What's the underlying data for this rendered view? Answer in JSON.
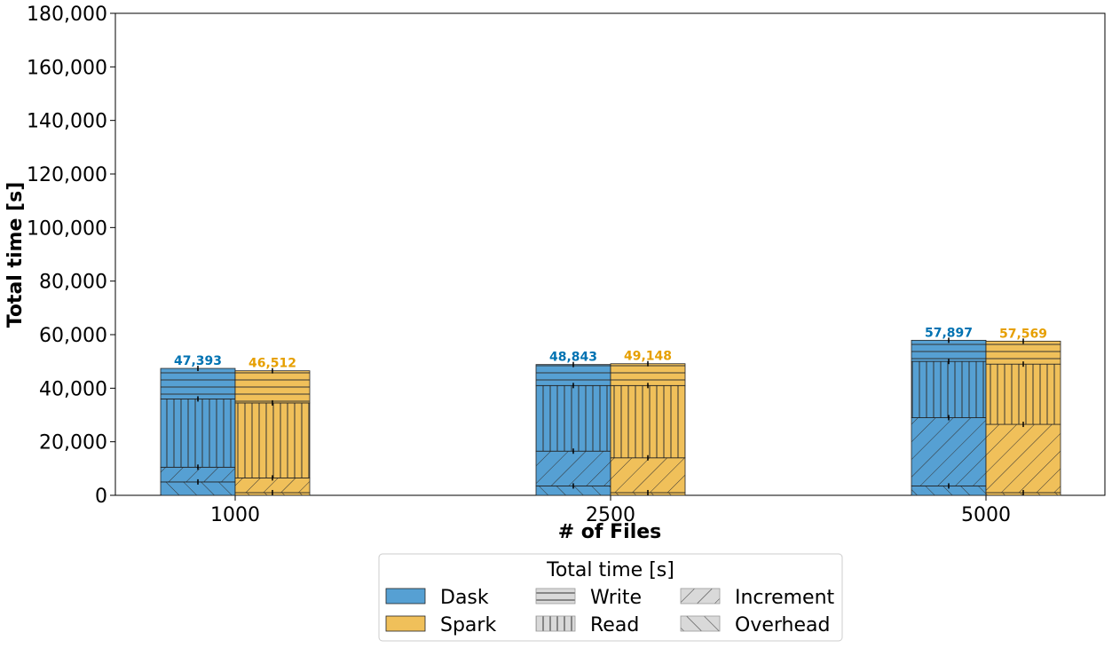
{
  "chart_data": {
    "type": "bar",
    "stacked": true,
    "xlabel": "# of Files",
    "ylabel": "Total time [s]",
    "ylim": [
      0,
      180000
    ],
    "yticks": [
      "0",
      "20,000",
      "40,000",
      "60,000",
      "80,000",
      "100,000",
      "120,000",
      "140,000",
      "160,000",
      "180,000"
    ],
    "categories": [
      "1000",
      "2500",
      "5000"
    ],
    "components": [
      "Overhead",
      "Increment",
      "Read",
      "Write"
    ],
    "series": [
      {
        "name": "Dask",
        "color": "#56a0d3",
        "label_color": "#0072b2",
        "totals": [
          47393,
          48843,
          57897
        ],
        "total_labels": [
          "47,393",
          "48,843",
          "57,897"
        ],
        "segments": {
          "Overhead": [
            5000,
            3500,
            3500
          ],
          "Increment": [
            5500,
            13000,
            25500
          ],
          "Read": [
            25500,
            24500,
            21000
          ],
          "Write": [
            11393,
            7843,
            7897
          ]
        }
      },
      {
        "name": "Spark",
        "color": "#f0c05a",
        "label_color": "#e69f00",
        "totals": [
          46512,
          49148,
          57569
        ],
        "total_labels": [
          "46,512",
          "49,148",
          "57,569"
        ],
        "segments": {
          "Overhead": [
            1000,
            1000,
            1000
          ],
          "Increment": [
            5500,
            13000,
            25500
          ],
          "Read": [
            28000,
            27000,
            22500
          ],
          "Write": [
            12012,
            8148,
            8569
          ]
        }
      }
    ],
    "legend": {
      "title": "Total time [s]",
      "placement": "bottom-center",
      "entries": [
        {
          "label": "Dask",
          "kind": "series"
        },
        {
          "label": "Write",
          "kind": "hatch",
          "hatch": "Write"
        },
        {
          "label": "Increment",
          "kind": "hatch",
          "hatch": "Increment"
        },
        {
          "label": "Spark",
          "kind": "series"
        },
        {
          "label": "Read",
          "kind": "hatch",
          "hatch": "Read"
        },
        {
          "label": "Overhead",
          "kind": "hatch",
          "hatch": "Overhead"
        }
      ]
    },
    "grid": false
  }
}
